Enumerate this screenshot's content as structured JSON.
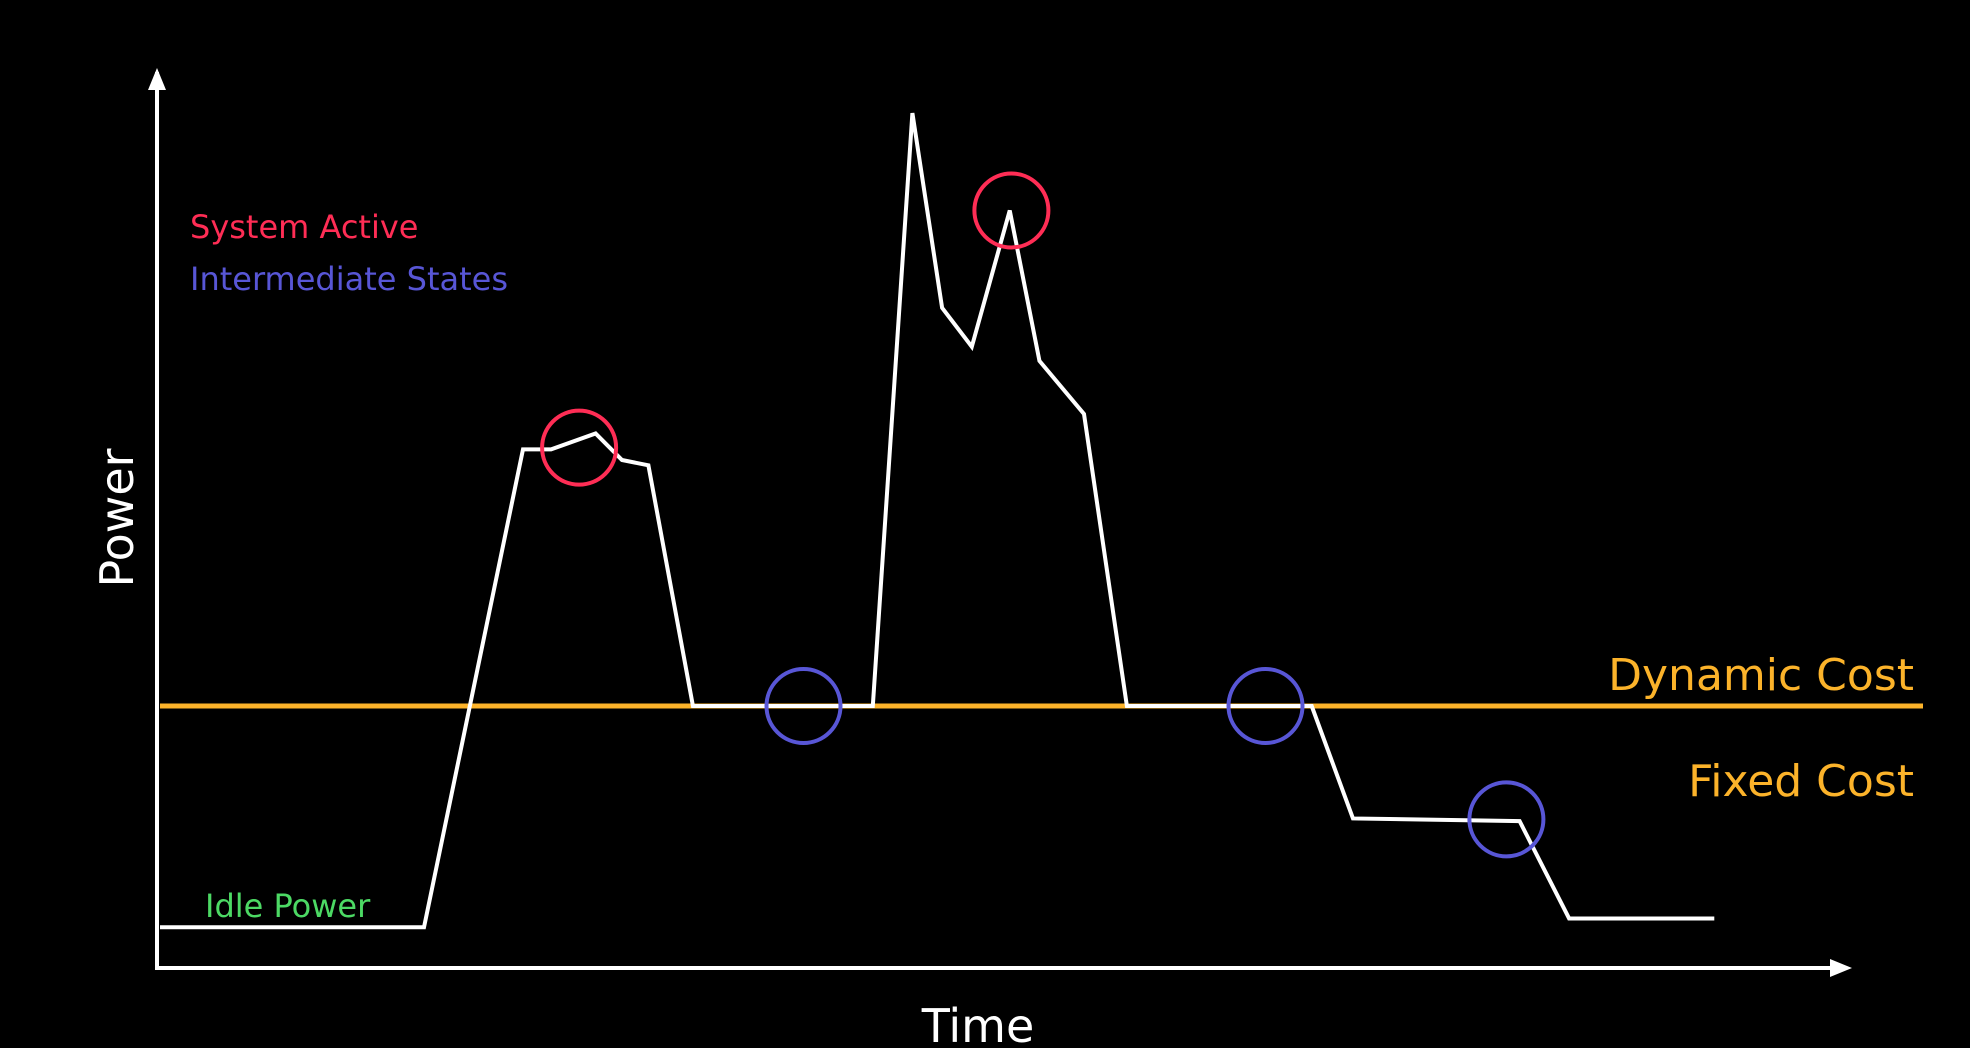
{
  "chart_data": {
    "type": "line",
    "xlabel": "Time",
    "ylabel": "Power",
    "xlim": [
      0,
      100
    ],
    "ylim": [
      0,
      100
    ],
    "grid": false,
    "legend": [
      {
        "label": "System Active",
        "color": "#ff2d55"
      },
      {
        "label": "Intermediate States",
        "color": "#5856d6"
      },
      {
        "label": "Idle Power",
        "color": "#4cd964"
      }
    ],
    "threshold": {
      "y": 27,
      "color": "#fcb32a",
      "label_above": "Dynamic Cost",
      "label_below": "Fixed Cost"
    },
    "series": [
      {
        "color": "#ffffff",
        "points": [
          [
            0,
            2
          ],
          [
            16,
            2
          ],
          [
            22,
            56
          ],
          [
            23.7,
            56
          ],
          [
            26.4,
            57.8
          ],
          [
            28,
            54.8
          ],
          [
            29.6,
            54.2
          ],
          [
            32.3,
            27
          ],
          [
            43.2,
            27
          ],
          [
            45.6,
            94
          ],
          [
            47.4,
            72
          ],
          [
            49.2,
            67.6
          ],
          [
            51.5,
            83
          ],
          [
            53.3,
            66
          ],
          [
            56,
            60
          ],
          [
            58.6,
            27
          ],
          [
            69.8,
            27
          ],
          [
            72.3,
            14.3
          ],
          [
            82.4,
            14
          ],
          [
            85.4,
            3
          ],
          [
            94.2,
            3
          ]
        ]
      }
    ],
    "markers": [
      {
        "x": 25.4,
        "y": 56.2,
        "color": "#ff2d55"
      },
      {
        "x": 51.6,
        "y": 83,
        "color": "#ff2d55"
      },
      {
        "x": 39,
        "y": 27,
        "color": "#5856d6"
      },
      {
        "x": 67,
        "y": 27,
        "color": "#5856d6"
      },
      {
        "x": 81.6,
        "y": 14.2,
        "color": "#5856d6"
      }
    ]
  }
}
